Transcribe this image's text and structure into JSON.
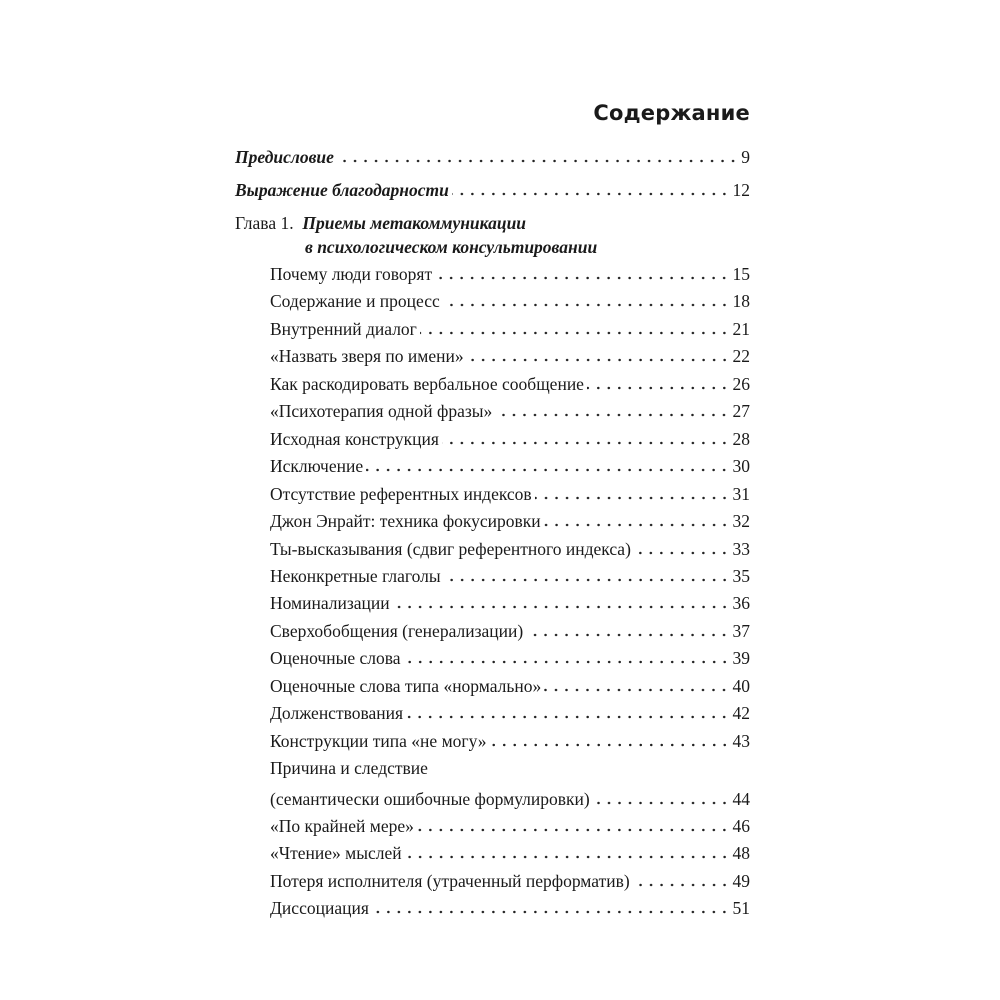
{
  "title": "Содержание",
  "front_matter": [
    {
      "label": "Предисловие",
      "page": "9"
    },
    {
      "label": "Выражение благодарности",
      "page": "12"
    }
  ],
  "chapter": {
    "number_label": "Глава 1.",
    "title_line1": "Приемы метакоммуникации",
    "title_line2": "в психологическом консультировании",
    "sections": [
      {
        "label": "Почему люди говорят",
        "page": "15"
      },
      {
        "label": "Содержание и процесс",
        "page": "18"
      },
      {
        "label": "Внутренний диалог",
        "page": "21"
      },
      {
        "label": "«Назвать зверя по имени»",
        "page": "22"
      },
      {
        "label": "Как раскодировать вербальное сообщение",
        "page": "26"
      },
      {
        "label": "«Психотерапия одной фразы»",
        "page": "27"
      },
      {
        "label": "Исходная конструкция",
        "page": "28"
      },
      {
        "label": "Исключение",
        "page": "30"
      },
      {
        "label": "Отсутствие референтных индексов",
        "page": "31"
      },
      {
        "label": "Джон Энрайт: техника фокусировки",
        "page": "32"
      },
      {
        "label": "Ты-высказывания (сдвиг референтного индекса)",
        "page": "33"
      },
      {
        "label": "Неконкретные глаголы",
        "page": "35"
      },
      {
        "label": "Номинализации",
        "page": "36"
      },
      {
        "label": "Сверхобобщения (генерализации)",
        "page": "37"
      },
      {
        "label": "Оценочные слова",
        "page": "39"
      },
      {
        "label": "Оценочные слова типа «нормально»",
        "page": "40"
      },
      {
        "label": "Долженствования",
        "page": "42"
      },
      {
        "label": "Конструкции типа «не могу»",
        "page": "43"
      },
      {
        "label": "Причина и следствие",
        "label2": "(семантически ошибочные формулировки)",
        "page": "44"
      },
      {
        "label": "«По крайней мере»",
        "page": "46"
      },
      {
        "label": "«Чтение» мыслей",
        "page": "48"
      },
      {
        "label": "Потеря исполнителя (утраченный перформатив)",
        "page": "49"
      },
      {
        "label": "Диссоциация",
        "page": "51"
      }
    ]
  }
}
